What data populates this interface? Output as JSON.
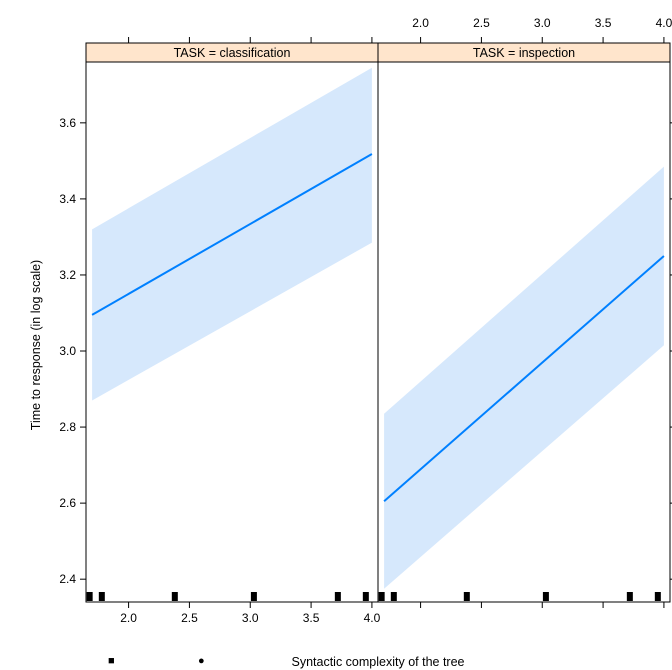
{
  "chart_data": {
    "type": "line",
    "xlabel": "Syntactic complexity of the tree",
    "ylabel": "Time to response (in log scale)",
    "xlim": [
      1.65,
      4.05
    ],
    "ylim": [
      2.34,
      3.76
    ],
    "x_ticks": [
      2.0,
      2.5,
      3.0,
      3.5,
      4.0
    ],
    "x_tick_labels": [
      "2.0",
      "2.5",
      "3.0",
      "3.5",
      "4.0"
    ],
    "y_ticks": [
      2.4,
      2.6,
      2.8,
      3.0,
      3.2,
      3.4,
      3.6
    ],
    "y_tick_labels": [
      "2.4",
      "2.6",
      "2.8",
      "3.0",
      "3.2",
      "3.4",
      "3.6"
    ],
    "grid": false,
    "colors": {
      "line": "#0080ff",
      "band": "#d6e8fc",
      "strip": "#ffe5cc"
    },
    "panels": [
      {
        "strip": "TASK = classification",
        "x": [
          1.7,
          4.0
        ],
        "fit": [
          3.095,
          3.518
        ],
        "lower": [
          2.87,
          3.285
        ],
        "upper": [
          3.32,
          3.745
        ],
        "rug": [
          1.68,
          1.78,
          2.38,
          3.03,
          3.72,
          3.95
        ]
      },
      {
        "strip": "TASK = inspection",
        "x": [
          1.7,
          4.0
        ],
        "fit": [
          2.605,
          3.25
        ],
        "lower": [
          2.375,
          3.015
        ],
        "upper": [
          2.835,
          3.485
        ],
        "rug": [
          1.68,
          1.78,
          2.38,
          3.03,
          3.72,
          3.95
        ]
      }
    ]
  },
  "legend_marks": [
    "■",
    "●"
  ]
}
